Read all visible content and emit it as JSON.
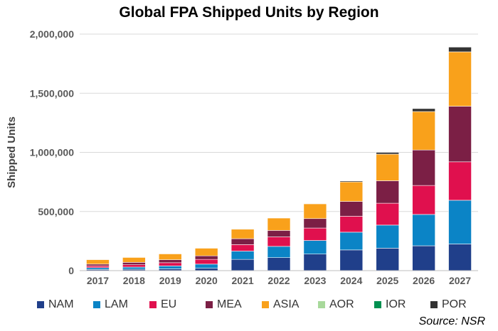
{
  "chart_data": {
    "type": "bar",
    "stacked": true,
    "title": "Global FPA Shipped Units by Region",
    "xlabel": "",
    "ylabel": "Shipped Units",
    "ylim": [
      0,
      2000000
    ],
    "yticks": [
      "0",
      "500,000",
      "1,000,000",
      "1,500,000",
      "2,000,000"
    ],
    "categories": [
      "2017",
      "2018",
      "2019",
      "2020",
      "2021",
      "2022",
      "2023",
      "2024",
      "2025",
      "2026",
      "2027"
    ],
    "series": [
      {
        "name": "NAM",
        "color": "#203f8a",
        "values": [
          10000,
          12000,
          15000,
          20000,
          95000,
          110000,
          140000,
          175000,
          190000,
          210000,
          225000
        ]
      },
      {
        "name": "LAM",
        "color": "#0b84c6",
        "values": [
          15000,
          18000,
          25000,
          35000,
          70000,
          95000,
          115000,
          150000,
          195000,
          265000,
          370000
        ]
      },
      {
        "name": "EU",
        "color": "#e0104e",
        "values": [
          15000,
          20000,
          27000,
          40000,
          55000,
          80000,
          105000,
          135000,
          185000,
          245000,
          325000
        ]
      },
      {
        "name": "MEA",
        "color": "#7b1f45",
        "values": [
          15000,
          20000,
          25000,
          30000,
          50000,
          55000,
          80000,
          125000,
          190000,
          300000,
          470000
        ]
      },
      {
        "name": "ASIA",
        "color": "#f9a11b",
        "values": [
          38000,
          42000,
          50000,
          65000,
          80000,
          105000,
          125000,
          165000,
          225000,
          325000,
          460000
        ]
      },
      {
        "name": "AOR",
        "color": "#a8d99b",
        "values": [
          0,
          0,
          0,
          0,
          0,
          0,
          0,
          0,
          0,
          0,
          0
        ]
      },
      {
        "name": "IOR",
        "color": "#009050",
        "values": [
          0,
          0,
          0,
          0,
          0,
          0,
          0,
          0,
          0,
          0,
          0
        ]
      },
      {
        "name": "POR",
        "color": "#333333",
        "values": [
          1000,
          1000,
          1000,
          1000,
          2000,
          2000,
          3000,
          8000,
          15000,
          25000,
          40000
        ]
      }
    ],
    "grid": true,
    "legend_position": "bottom",
    "source": "Source: NSR"
  }
}
